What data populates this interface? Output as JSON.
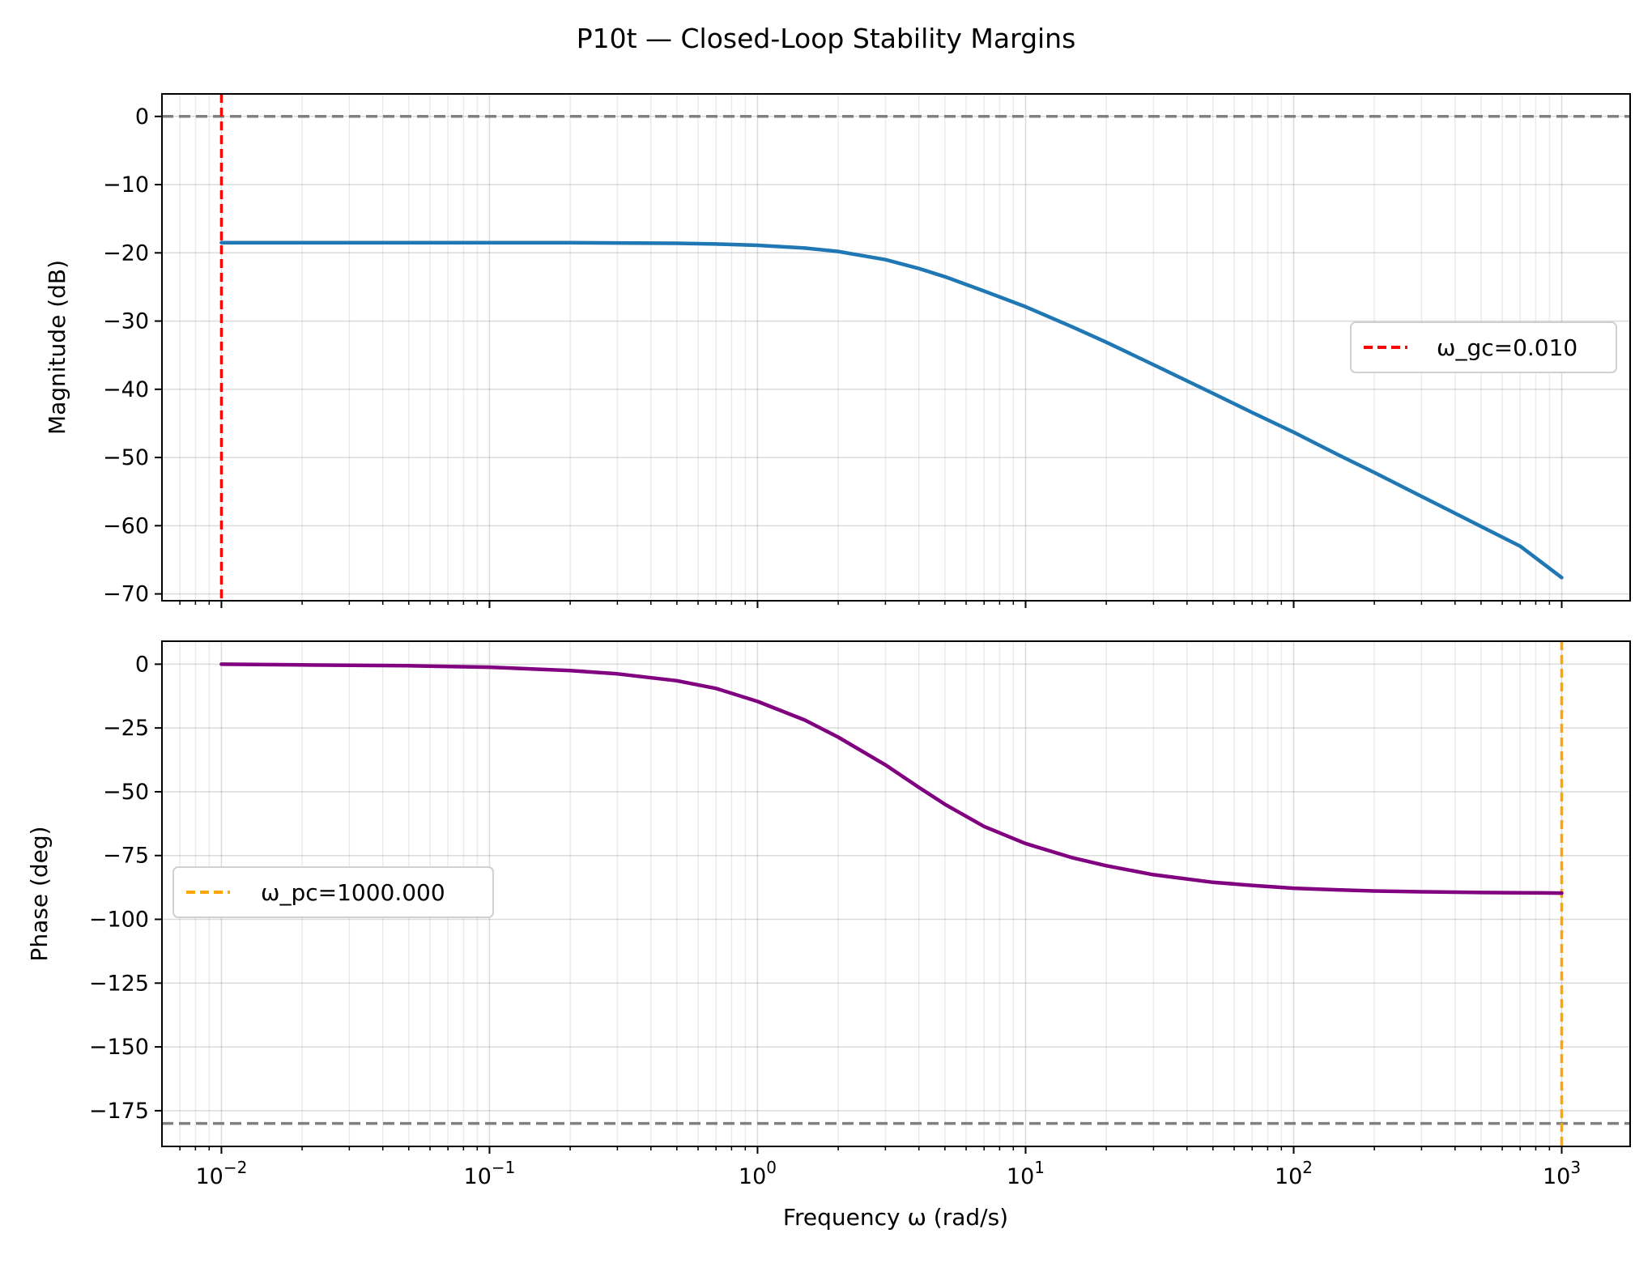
{
  "chart_data": {
    "type": "line",
    "title": "P10t — Closed-Loop Stability Margins",
    "xlabel": "Frequency ω (rad/s)",
    "x_scale": "log",
    "xlim": [
      0.006,
      1800
    ],
    "x_ticks": [
      0.01,
      0.1,
      1,
      10,
      100,
      1000
    ],
    "x_tick_labels": [
      {
        "base": "10",
        "exp": "−2"
      },
      {
        "base": "10",
        "exp": "−1"
      },
      {
        "base": "10",
        "exp": "0"
      },
      {
        "base": "10",
        "exp": "1"
      },
      {
        "base": "10",
        "exp": "2"
      },
      {
        "base": "10",
        "exp": "3"
      }
    ],
    "grid": true,
    "panels": [
      {
        "name": "magnitude",
        "ylabel": "Magnitude (dB)",
        "ylim": [
          -71,
          3.3
        ],
        "y_ticks": [
          0,
          -10,
          -20,
          -30,
          -40,
          -50,
          -60,
          -70
        ],
        "y_tick_labels": [
          "0",
          "−10",
          "−20",
          "−30",
          "−40",
          "−50",
          "−60",
          "−70"
        ],
        "hline": {
          "y": 0,
          "color": "#808080",
          "style": "dashed"
        },
        "vline": {
          "x": 0.01,
          "color": "#ff0000",
          "style": "dashed",
          "legend": "ω_gc=0.010"
        },
        "legend_position": "center-right",
        "series": {
          "color": "#1f77b4",
          "x": [
            0.01,
            0.02,
            0.05,
            0.1,
            0.2,
            0.3,
            0.5,
            0.7,
            1,
            1.5,
            2,
            3,
            4,
            5,
            7,
            10,
            15,
            20,
            30,
            50,
            70,
            100,
            150,
            200,
            300,
            500,
            700,
            1000
          ],
          "y": [
            -18.5,
            -18.5,
            -18.5,
            -18.5,
            -18.5,
            -18.55,
            -18.6,
            -18.7,
            -18.9,
            -19.3,
            -19.8,
            -21.0,
            -22.3,
            -23.5,
            -25.6,
            -27.9,
            -30.9,
            -33.1,
            -36.4,
            -40.6,
            -43.4,
            -46.3,
            -49.8,
            -52.2,
            -55.7,
            -60.1,
            -63.0,
            -67.6
          ]
        }
      },
      {
        "name": "phase",
        "ylabel": "Phase (deg)",
        "ylim": [
          -189,
          9
        ],
        "y_ticks": [
          0,
          -25,
          -50,
          -75,
          -100,
          -125,
          -150,
          -175
        ],
        "y_tick_labels": [
          "0",
          "−25",
          "−50",
          "−75",
          "−100",
          "−125",
          "−150",
          "−175"
        ],
        "hline": {
          "y": -180,
          "color": "#808080",
          "style": "dashed"
        },
        "vline": {
          "x": 1000,
          "color": "#ffa500",
          "style": "dashed",
          "legend": "ω_pc=1000.000"
        },
        "legend_position": "center-left",
        "series": {
          "color": "#800080",
          "x": [
            0.01,
            0.02,
            0.05,
            0.1,
            0.2,
            0.3,
            0.5,
            0.7,
            1,
            1.5,
            2,
            3,
            4,
            5,
            7,
            10,
            15,
            20,
            30,
            50,
            70,
            100,
            150,
            200,
            300,
            500,
            700,
            1000
          ],
          "y": [
            0,
            -0.3,
            -0.6,
            -1.2,
            -2.5,
            -3.8,
            -6.5,
            -9.5,
            -14.6,
            -21.9,
            -28.6,
            -39.5,
            -48.3,
            -54.9,
            -63.6,
            -70.3,
            -75.9,
            -79.0,
            -82.5,
            -85.5,
            -86.7,
            -87.8,
            -88.5,
            -88.9,
            -89.2,
            -89.5,
            -89.6,
            -89.7
          ]
        }
      }
    ]
  }
}
